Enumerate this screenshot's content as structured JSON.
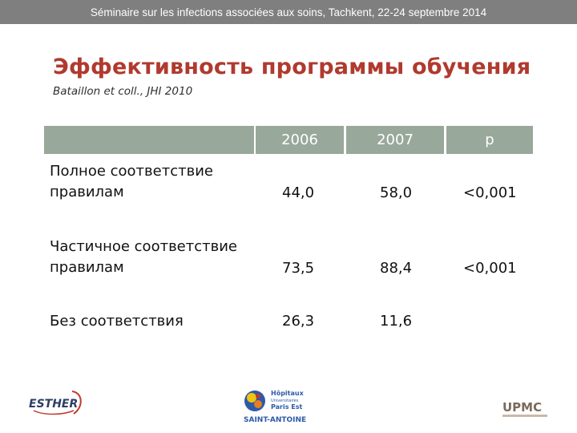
{
  "header_bar": {
    "text": "Séminaire sur les infections associées aux soins, Tachkent, 22-24 septembre 2014"
  },
  "slide": {
    "title": "Эффективность программы обучения",
    "subtitle": "Bataillon et coll.,  JHI 2010"
  },
  "table": {
    "columns": [
      "2006",
      "2007",
      "p"
    ],
    "rows": [
      {
        "label": "Полное соответствие правилам",
        "v2006": "44,0",
        "v2007": "58,0",
        "p": "<0,001"
      },
      {
        "label": "Частичное соответствие правилам",
        "v2006": "73,5",
        "v2007": "88,4",
        "p": "<0,001"
      },
      {
        "label": "Без соответствия",
        "v2006": "26,3",
        "v2007": "11,6",
        "p": ""
      }
    ]
  },
  "logos": {
    "esther": "ESTHER",
    "hopitaux_line1": "Hôpitaux",
    "hopitaux_line2": "Universitaires",
    "hopitaux_line3": "Paris Est",
    "saint_antoine": "SAINT-ANTOINE",
    "upmc": "UPMC"
  },
  "colors": {
    "header_bar": "#7f7f7f",
    "title": "#b03a2e",
    "table_header": "#98a89a"
  }
}
